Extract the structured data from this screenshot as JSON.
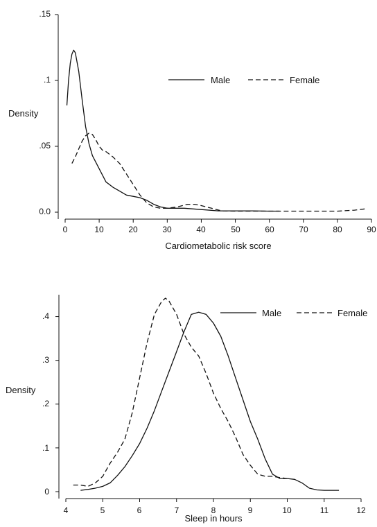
{
  "chart_data": [
    {
      "type": "line",
      "ylabel": "Density",
      "xlabel": "Cardiometabolic  risk score",
      "xlim": [
        0,
        90
      ],
      "ylim": [
        0,
        0.15
      ],
      "x_ticks": [
        0,
        10,
        20,
        30,
        40,
        50,
        60,
        70,
        80,
        90
      ],
      "x_tick_labels": [
        "0",
        "10",
        "20",
        "30",
        "40",
        "50",
        "60",
        "70",
        "80",
        "90"
      ],
      "y_ticks": [
        0,
        0.05,
        0.1,
        0.15
      ],
      "y_tick_labels": [
        "0.0",
        ".05",
        ".1",
        ".15"
      ],
      "legend_position": "top-right",
      "series": [
        {
          "name": "Male",
          "style": "solid",
          "color": "#111111",
          "x": [
            0.5,
            1,
            1.5,
            2,
            2.5,
            3,
            4,
            5,
            6,
            7,
            8,
            10,
            12,
            14,
            16,
            18,
            20,
            22,
            24,
            26,
            28,
            30,
            35,
            40,
            45,
            50,
            55,
            60,
            63
          ],
          "y": [
            0.081,
            0.1,
            0.113,
            0.12,
            0.123,
            0.121,
            0.107,
            0.085,
            0.065,
            0.052,
            0.043,
            0.033,
            0.023,
            0.019,
            0.016,
            0.013,
            0.012,
            0.011,
            0.009,
            0.006,
            0.004,
            0.003,
            0.003,
            0.002,
            0.001,
            0.001,
            0.001,
            0.0008,
            0.0008
          ]
        },
        {
          "name": "Female",
          "style": "dashed",
          "color": "#111111",
          "x": [
            2,
            3,
            4,
            5,
            6,
            7,
            8,
            9,
            10,
            11,
            12,
            14,
            16,
            18,
            20,
            22,
            24,
            26,
            28,
            30,
            33,
            36,
            38,
            40,
            43,
            46,
            50,
            55,
            60,
            70,
            80,
            85,
            88
          ],
          "y": [
            0.037,
            0.042,
            0.048,
            0.054,
            0.058,
            0.06,
            0.059,
            0.055,
            0.05,
            0.047,
            0.046,
            0.042,
            0.037,
            0.029,
            0.021,
            0.013,
            0.007,
            0.004,
            0.003,
            0.003,
            0.004,
            0.006,
            0.006,
            0.005,
            0.003,
            0.001,
            0.0008,
            0.0008,
            0.0008,
            0.0008,
            0.0008,
            0.0015,
            0.0025
          ]
        }
      ]
    },
    {
      "type": "line",
      "ylabel": "Density",
      "xlabel": "Sleep in hours",
      "xlim": [
        4,
        12
      ],
      "ylim": [
        0,
        0.45
      ],
      "x_ticks": [
        4,
        5,
        6,
        7,
        8,
        9,
        10,
        11,
        12
      ],
      "x_tick_labels": [
        "4",
        "5",
        "6",
        "7",
        "8",
        "9",
        "10",
        "11",
        "12"
      ],
      "y_ticks": [
        0,
        0.1,
        0.2,
        0.3,
        0.4
      ],
      "y_tick_labels": [
        "0",
        ".1",
        ".2",
        ".3",
        ".4"
      ],
      "legend_position": "top-right",
      "series": [
        {
          "name": "Male",
          "style": "solid",
          "color": "#111111",
          "x": [
            4.4,
            4.6,
            4.8,
            5.0,
            5.2,
            5.4,
            5.6,
            5.8,
            6.0,
            6.2,
            6.4,
            6.6,
            6.8,
            7.0,
            7.2,
            7.4,
            7.6,
            7.8,
            8.0,
            8.2,
            8.4,
            8.6,
            8.8,
            9.0,
            9.2,
            9.4,
            9.6,
            9.8,
            10.0,
            10.2,
            10.4,
            10.6,
            10.8,
            11.0,
            11.4
          ],
          "y": [
            0.003,
            0.005,
            0.008,
            0.012,
            0.02,
            0.037,
            0.057,
            0.082,
            0.11,
            0.145,
            0.185,
            0.23,
            0.275,
            0.32,
            0.365,
            0.405,
            0.41,
            0.405,
            0.385,
            0.355,
            0.31,
            0.26,
            0.21,
            0.16,
            0.12,
            0.075,
            0.04,
            0.03,
            0.03,
            0.028,
            0.02,
            0.008,
            0.004,
            0.003,
            0.003
          ]
        },
        {
          "name": "Female",
          "style": "dashed",
          "color": "#111111",
          "x": [
            4.2,
            4.4,
            4.6,
            4.8,
            5.0,
            5.2,
            5.4,
            5.6,
            5.8,
            6.0,
            6.2,
            6.4,
            6.6,
            6.7,
            6.8,
            7.0,
            7.2,
            7.4,
            7.6,
            7.8,
            8.0,
            8.2,
            8.4,
            8.6,
            8.8,
            9.0,
            9.2,
            9.4,
            9.6,
            9.8,
            10.0
          ],
          "y": [
            0.015,
            0.015,
            0.012,
            0.02,
            0.035,
            0.065,
            0.09,
            0.12,
            0.18,
            0.26,
            0.34,
            0.405,
            0.435,
            0.442,
            0.435,
            0.405,
            0.36,
            0.33,
            0.31,
            0.27,
            0.225,
            0.19,
            0.16,
            0.125,
            0.085,
            0.06,
            0.04,
            0.035,
            0.035,
            0.032,
            0.03
          ]
        }
      ]
    }
  ]
}
